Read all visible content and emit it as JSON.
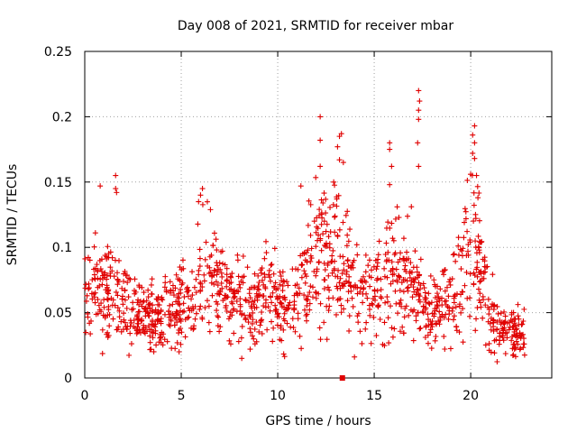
{
  "chart_data": {
    "type": "scatter",
    "title": "Day 008 of 2021, SRMTID for receiver mbar",
    "xlabel": "GPS time / hours",
    "ylabel": "SRMTID / TECUs",
    "xlim": [
      0,
      24.2
    ],
    "ylim": [
      0,
      0.25
    ],
    "xticks": [
      0,
      5,
      10,
      15,
      20
    ],
    "yticks": [
      0,
      0.05,
      0.1,
      0.15,
      0.2,
      0.25
    ],
    "ytick_labels": [
      "0",
      "0.05",
      "0.1",
      "0.15",
      "0.2",
      "0.25"
    ],
    "grid": true,
    "marker": "+",
    "marker_color": "#e00000",
    "series": [
      {
        "name": "SRMTID",
        "profile": [
          {
            "x": 0.0,
            "y": 0.068
          },
          {
            "x": 0.5,
            "y": 0.066
          },
          {
            "x": 1.0,
            "y": 0.065
          },
          {
            "x": 1.5,
            "y": 0.06
          },
          {
            "x": 2.0,
            "y": 0.055
          },
          {
            "x": 2.5,
            "y": 0.05
          },
          {
            "x": 3.0,
            "y": 0.045
          },
          {
            "x": 3.5,
            "y": 0.043
          },
          {
            "x": 4.0,
            "y": 0.047
          },
          {
            "x": 4.5,
            "y": 0.052
          },
          {
            "x": 5.0,
            "y": 0.055
          },
          {
            "x": 5.5,
            "y": 0.06
          },
          {
            "x": 6.0,
            "y": 0.082
          },
          {
            "x": 6.5,
            "y": 0.08
          },
          {
            "x": 7.0,
            "y": 0.07
          },
          {
            "x": 7.5,
            "y": 0.062
          },
          {
            "x": 8.0,
            "y": 0.06
          },
          {
            "x": 8.5,
            "y": 0.058
          },
          {
            "x": 9.0,
            "y": 0.063
          },
          {
            "x": 9.5,
            "y": 0.066
          },
          {
            "x": 10.0,
            "y": 0.058
          },
          {
            "x": 10.5,
            "y": 0.055
          },
          {
            "x": 11.0,
            "y": 0.06
          },
          {
            "x": 11.5,
            "y": 0.075
          },
          {
            "x": 12.0,
            "y": 0.095
          },
          {
            "x": 12.5,
            "y": 0.1
          },
          {
            "x": 13.0,
            "y": 0.097
          },
          {
            "x": 13.5,
            "y": 0.08
          },
          {
            "x": 14.0,
            "y": 0.072
          },
          {
            "x": 14.5,
            "y": 0.065
          },
          {
            "x": 15.0,
            "y": 0.068
          },
          {
            "x": 15.5,
            "y": 0.075
          },
          {
            "x": 16.0,
            "y": 0.085
          },
          {
            "x": 16.5,
            "y": 0.075
          },
          {
            "x": 17.0,
            "y": 0.07
          },
          {
            "x": 17.5,
            "y": 0.06
          },
          {
            "x": 18.0,
            "y": 0.048
          },
          {
            "x": 18.5,
            "y": 0.055
          },
          {
            "x": 19.0,
            "y": 0.065
          },
          {
            "x": 19.5,
            "y": 0.085
          },
          {
            "x": 20.0,
            "y": 0.1
          },
          {
            "x": 20.5,
            "y": 0.09
          },
          {
            "x": 21.0,
            "y": 0.05
          },
          {
            "x": 21.5,
            "y": 0.04
          },
          {
            "x": 22.0,
            "y": 0.035
          },
          {
            "x": 22.5,
            "y": 0.032
          },
          {
            "x": 22.8,
            "y": 0.03
          }
        ],
        "outliers": [
          {
            "x": 0.8,
            "y": 0.147
          },
          {
            "x": 1.6,
            "y": 0.155
          },
          {
            "x": 1.6,
            "y": 0.145
          },
          {
            "x": 1.65,
            "y": 0.142
          },
          {
            "x": 6.0,
            "y": 0.14
          },
          {
            "x": 6.1,
            "y": 0.145
          },
          {
            "x": 5.9,
            "y": 0.135
          },
          {
            "x": 11.2,
            "y": 0.147
          },
          {
            "x": 12.2,
            "y": 0.2
          },
          {
            "x": 12.2,
            "y": 0.182
          },
          {
            "x": 12.2,
            "y": 0.162
          },
          {
            "x": 12.9,
            "y": 0.15
          },
          {
            "x": 13.2,
            "y": 0.185
          },
          {
            "x": 13.3,
            "y": 0.187
          },
          {
            "x": 13.1,
            "y": 0.177
          },
          {
            "x": 13.2,
            "y": 0.167
          },
          {
            "x": 13.4,
            "y": 0.165
          },
          {
            "x": 15.8,
            "y": 0.18
          },
          {
            "x": 15.8,
            "y": 0.175
          },
          {
            "x": 15.9,
            "y": 0.162
          },
          {
            "x": 15.8,
            "y": 0.148
          },
          {
            "x": 17.3,
            "y": 0.22
          },
          {
            "x": 17.35,
            "y": 0.212
          },
          {
            "x": 17.3,
            "y": 0.205
          },
          {
            "x": 17.3,
            "y": 0.198
          },
          {
            "x": 17.25,
            "y": 0.18
          },
          {
            "x": 17.3,
            "y": 0.162
          },
          {
            "x": 20.2,
            "y": 0.193
          },
          {
            "x": 20.1,
            "y": 0.186
          },
          {
            "x": 20.2,
            "y": 0.18
          },
          {
            "x": 20.1,
            "y": 0.172
          },
          {
            "x": 20.2,
            "y": 0.168
          },
          {
            "x": 20.3,
            "y": 0.155
          },
          {
            "x": 13.35,
            "y": 0.0
          }
        ]
      }
    ]
  }
}
